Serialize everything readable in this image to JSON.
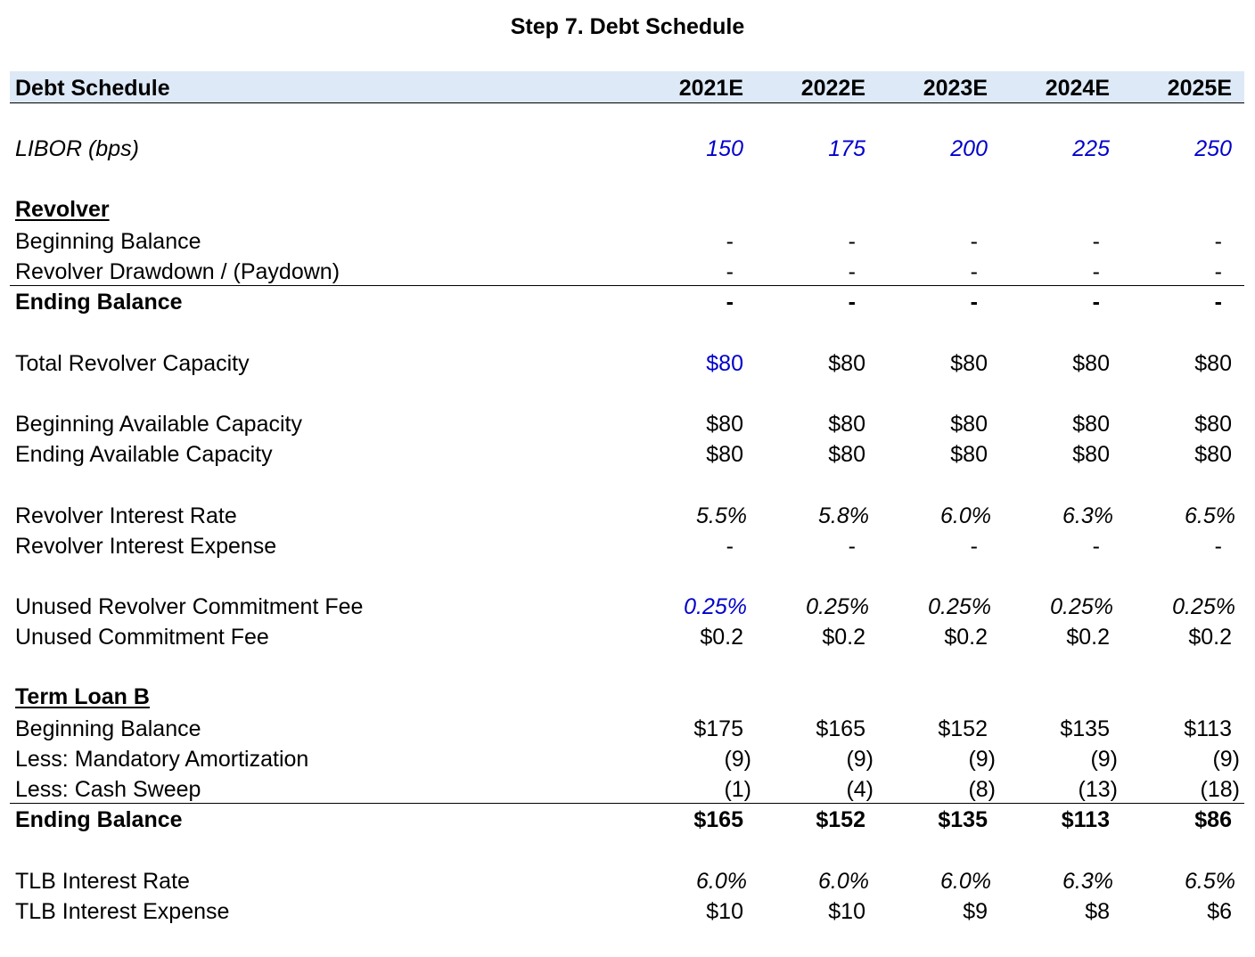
{
  "title": "Step 7. Debt Schedule",
  "header": {
    "label": "Debt Schedule",
    "years": [
      "2021E",
      "2022E",
      "2023E",
      "2024E",
      "2025E"
    ]
  },
  "libor": {
    "label": "LIBOR (bps)",
    "values": [
      "150",
      "175",
      "200",
      "225",
      "250"
    ]
  },
  "revolver": {
    "section_label": "Revolver",
    "beginning_balance": {
      "label": "Beginning Balance",
      "values": [
        "-",
        "-",
        "-",
        "-",
        "-"
      ]
    },
    "drawdown": {
      "label": "Revolver Drawdown / (Paydown)",
      "values": [
        "-",
        "-",
        "-",
        "-",
        "-"
      ]
    },
    "ending_balance": {
      "label": "Ending Balance",
      "values": [
        "-",
        "-",
        "-",
        "-",
        "-"
      ]
    },
    "total_capacity": {
      "label": "Total Revolver Capacity",
      "values": [
        "$80",
        "$80",
        "$80",
        "$80",
        "$80"
      ]
    },
    "beginning_available": {
      "label": "Beginning Available Capacity",
      "values": [
        "$80",
        "$80",
        "$80",
        "$80",
        "$80"
      ]
    },
    "ending_available": {
      "label": "Ending Available Capacity",
      "values": [
        "$80",
        "$80",
        "$80",
        "$80",
        "$80"
      ]
    },
    "interest_rate": {
      "label": "Revolver Interest Rate",
      "values": [
        "5.5%",
        "5.8%",
        "6.0%",
        "6.3%",
        "6.5%"
      ]
    },
    "interest_expense": {
      "label": "Revolver Interest Expense",
      "values": [
        "-",
        "-",
        "-",
        "-",
        "-"
      ]
    },
    "unused_fee_rate": {
      "label": "Unused Revolver Commitment Fee",
      "values": [
        "0.25%",
        "0.25%",
        "0.25%",
        "0.25%",
        "0.25%"
      ]
    },
    "unused_fee": {
      "label": "Unused Commitment Fee",
      "values": [
        "$0.2",
        "$0.2",
        "$0.2",
        "$0.2",
        "$0.2"
      ]
    }
  },
  "tlb": {
    "section_label": "Term Loan B",
    "beginning_balance": {
      "label": "Beginning Balance",
      "values": [
        "$175",
        "$165",
        "$152",
        "$135",
        "$113"
      ]
    },
    "mandatory_amortization": {
      "label": "Less: Mandatory Amortization",
      "values": [
        "(9)",
        "(9)",
        "(9)",
        "(9)",
        "(9)"
      ]
    },
    "cash_sweep": {
      "label": "Less: Cash Sweep",
      "values": [
        "(1)",
        "(4)",
        "(8)",
        "(13)",
        "(18)"
      ]
    },
    "ending_balance": {
      "label": "Ending Balance",
      "values": [
        "$165",
        "$152",
        "$135",
        "$113",
        "$86"
      ]
    },
    "interest_rate": {
      "label": "TLB Interest Rate",
      "values": [
        "6.0%",
        "6.0%",
        "6.0%",
        "6.3%",
        "6.5%"
      ]
    },
    "interest_expense": {
      "label": "TLB Interest Expense",
      "values": [
        "$10",
        "$10",
        "$9",
        "$8",
        "$6"
      ]
    }
  },
  "colors": {
    "header_fill": "#dde9f6",
    "input_blue": "#0000cc"
  }
}
